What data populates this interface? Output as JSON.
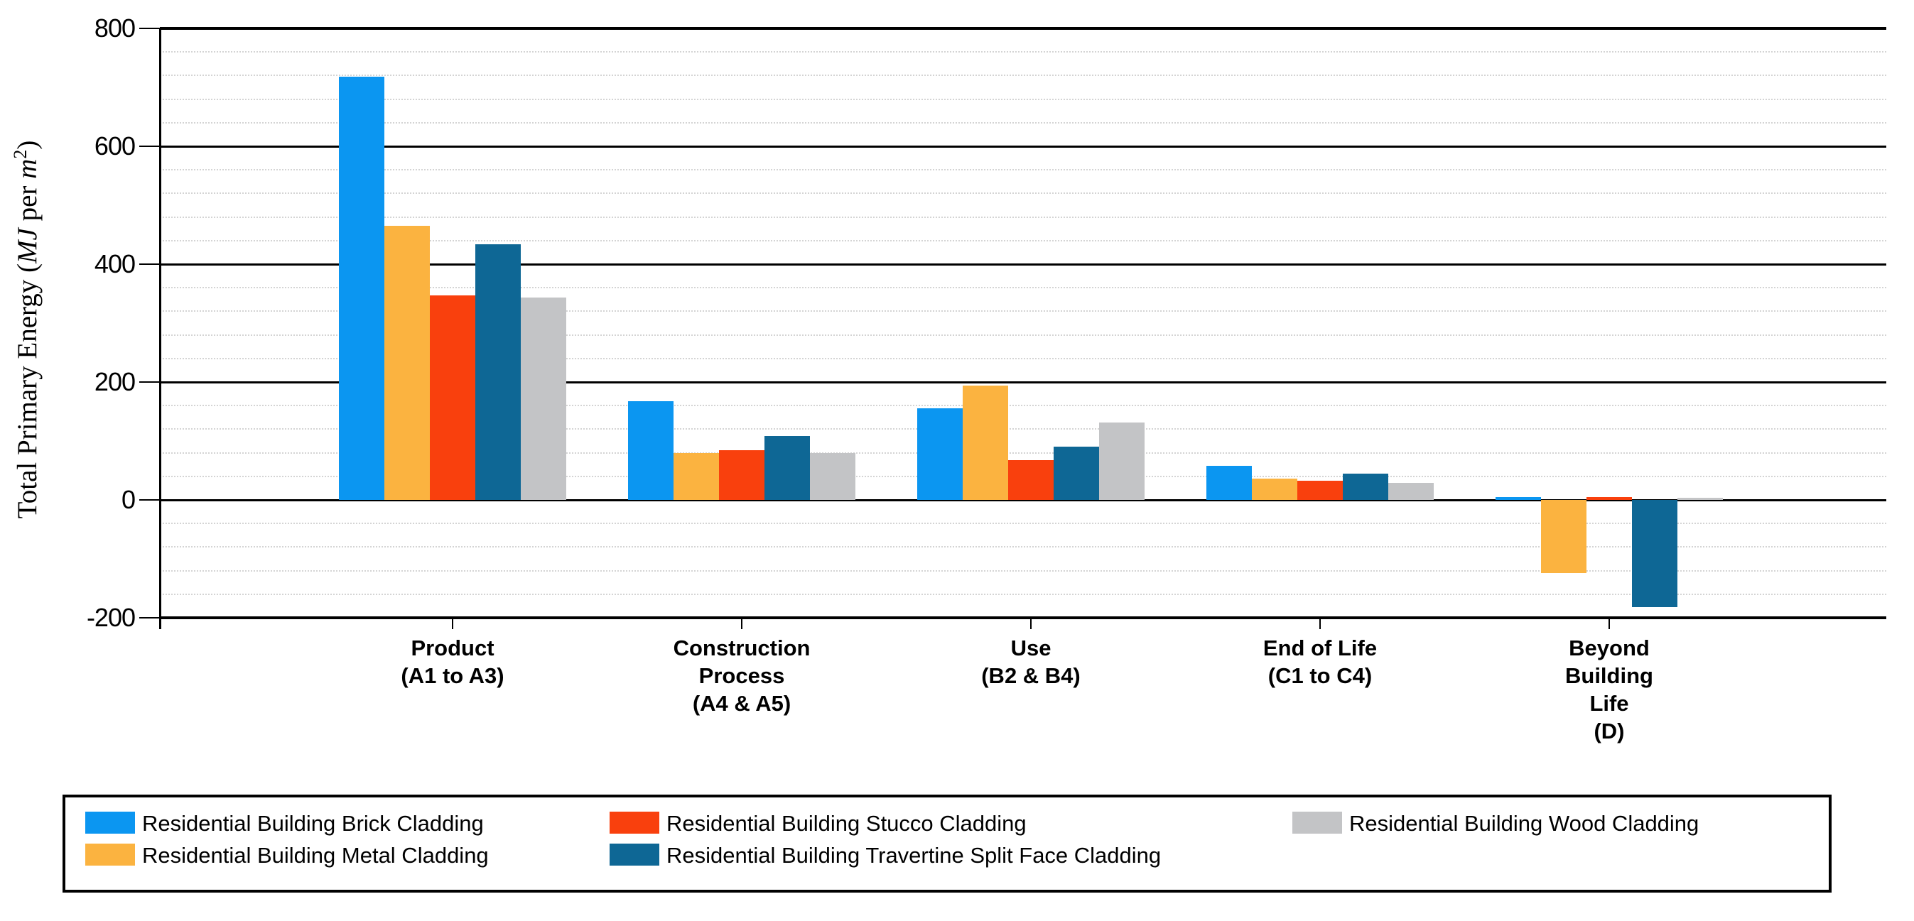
{
  "chart_data": {
    "type": "bar",
    "title": "",
    "y_axis": {
      "title_parts": {
        "prefix": "Total Primary Energy (",
        "unit_italic_1": "MJ",
        "mid": " per ",
        "unit_italic_2": "m",
        "superscript": "2",
        "suffix": ")"
      },
      "min": -200,
      "max": 800,
      "major_step": 200,
      "minor_step": 40,
      "major_tick_labels": [
        "800",
        "600",
        "400",
        "200",
        "0",
        "-200"
      ],
      "grid": "major-solid-minor-dotted"
    },
    "categories": [
      {
        "label": "Product (A1 to A3)",
        "label_lines": [
          "Product",
          "(A1 to A3)"
        ]
      },
      {
        "label": "Construction Process (A4 & A5)",
        "label_lines": [
          "Construction",
          "Process",
          "(A4 & A5)"
        ]
      },
      {
        "label": "Use (B2 & B4)",
        "label_lines": [
          "Use",
          "(B2 & B4)"
        ]
      },
      {
        "label": "End of Life (C1 to C4)",
        "label_lines": [
          "End of Life",
          "(C1 to C4)"
        ]
      },
      {
        "label": "Beyond Building Life (D)",
        "label_lines": [
          "Beyond",
          "Building",
          "Life",
          "(D)"
        ]
      }
    ],
    "series": [
      {
        "name": "Residential Building Brick Cladding",
        "color": "#0B96F1",
        "values": [
          718,
          168,
          156,
          58,
          5
        ]
      },
      {
        "name": "Residential Building Metal Cladding",
        "color": "#FBB340",
        "values": [
          465,
          79,
          194,
          36,
          -124
        ]
      },
      {
        "name": "Residential Building Stucco Cladding",
        "color": "#F9400D",
        "values": [
          347,
          84,
          67,
          32,
          5
        ]
      },
      {
        "name": "Residential Building Travertine Split Face Cladding",
        "color": "#0E6795",
        "values": [
          434,
          109,
          90,
          45,
          -182
        ]
      },
      {
        "name": "Residential Building Wood Cladding",
        "color": "#C3C4C6",
        "values": [
          343,
          80,
          131,
          29,
          4
        ]
      }
    ],
    "legend": {
      "position": "bottom",
      "border": "#000000",
      "columns": [
        [
          0,
          1
        ],
        [
          2,
          3
        ],
        [
          4
        ]
      ]
    }
  }
}
